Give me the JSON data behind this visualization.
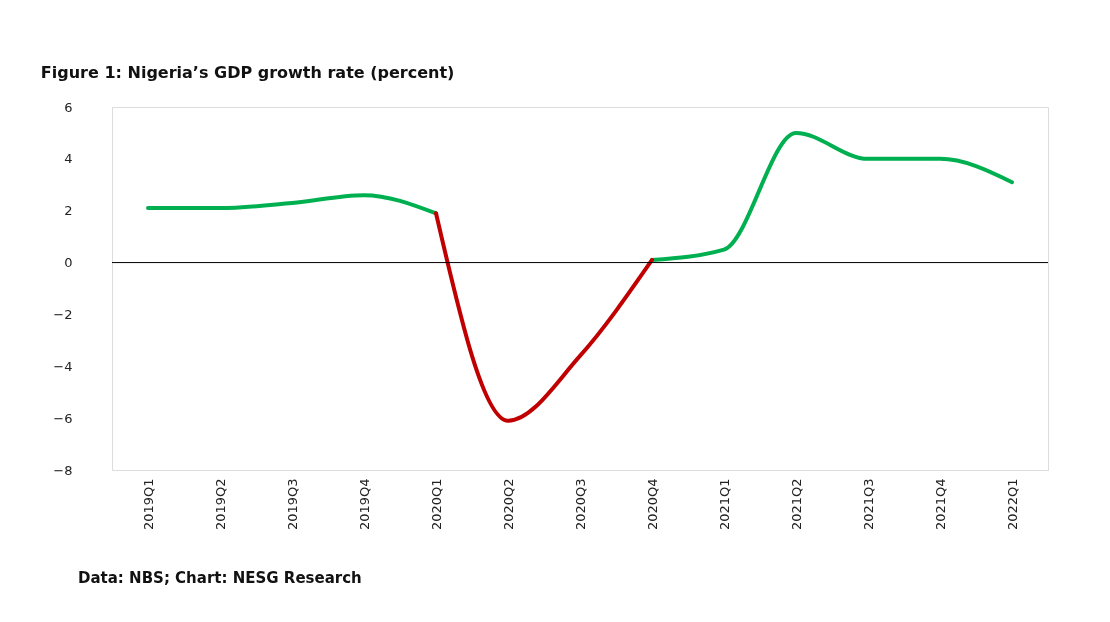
{
  "chart_data": {
    "type": "line",
    "title": "Figure 1: Nigeria’s GDP growth rate (percent)",
    "categories": [
      "2019Q1",
      "2019Q2",
      "2019Q3",
      "2019Q4",
      "2020Q1",
      "2020Q2",
      "2020Q3",
      "2020Q4",
      "2021Q1",
      "2021Q2",
      "2021Q3",
      "2021Q4",
      "2022Q1"
    ],
    "series": [
      {
        "color": "#00b050",
        "values": [
          2.1,
          2.1,
          2.3,
          2.6,
          1.9,
          null,
          null,
          0.1,
          0.5,
          5.0,
          4.0,
          4.0,
          3.1
        ]
      },
      {
        "color": "#c00000",
        "values": [
          null,
          null,
          null,
          null,
          1.9,
          -6.1,
          -3.6,
          0.1,
          null,
          null,
          null,
          null,
          null
        ]
      }
    ],
    "ylim": [
      -8,
      6
    ],
    "yticks": [
      -8,
      -6,
      -4,
      -2,
      0,
      2,
      4,
      6
    ],
    "grid": false,
    "legend": false,
    "marker": "none",
    "line_style": "solid",
    "ref_lines": [
      {
        "axis": "y",
        "value": 0
      }
    ],
    "annotations": [
      "Data: NBS; Chart: NESG Research"
    ]
  }
}
